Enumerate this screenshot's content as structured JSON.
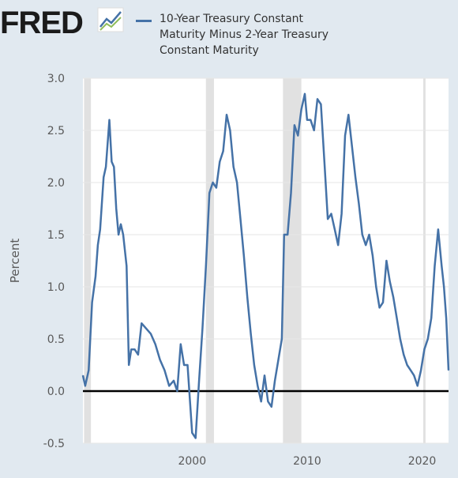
{
  "header": {
    "logo_text": "FRED",
    "legend_label": "10-Year Treasury Constant Maturity Minus 2-Year Treasury Constant Maturity"
  },
  "colors": {
    "background": "#e1e9f0",
    "plot_background": "#ffffff",
    "series": "#4572a7",
    "recession": "#e1e1e1",
    "zero_line": "#000000",
    "logo_dark": "#1b1b1b"
  },
  "chart_data": {
    "type": "line",
    "title": "",
    "xlabel": "",
    "ylabel": "Percent",
    "xlim": [
      1990.5,
      2022.3
    ],
    "ylim": [
      -0.5,
      3.0
    ],
    "yticks": [
      -0.5,
      0.0,
      0.5,
      1.0,
      1.5,
      2.0,
      2.5,
      3.0
    ],
    "ytick_labels": [
      "-0.5",
      "0.0",
      "0.5",
      "1.0",
      "1.5",
      "2.0",
      "2.5",
      "3.0"
    ],
    "xticks": [
      2000,
      2010,
      2020
    ],
    "xtick_labels": [
      "2000",
      "2010",
      "2020"
    ],
    "grid": "horizontal",
    "legend": "top",
    "recessions": [
      [
        1990.6,
        1991.2
      ],
      [
        2001.2,
        2001.9
      ],
      [
        2007.9,
        2009.5
      ],
      [
        2020.1,
        2020.3
      ]
    ],
    "series": [
      {
        "name": "10-Year Treasury Constant Maturity Minus 2-Year Treasury Constant Maturity",
        "x": [
          1990.5,
          1990.7,
          1991.0,
          1991.3,
          1991.6,
          1991.8,
          1992.0,
          1992.3,
          1992.5,
          1992.8,
          1993.0,
          1993.2,
          1993.4,
          1993.6,
          1993.8,
          1994.0,
          1994.3,
          1994.5,
          1994.7,
          1995.0,
          1995.3,
          1995.6,
          1996.0,
          1996.4,
          1996.8,
          1997.2,
          1997.6,
          1998.0,
          1998.4,
          1998.7,
          1999.0,
          1999.3,
          1999.6,
          2000.0,
          2000.3,
          2000.6,
          2000.9,
          2001.2,
          2001.5,
          2001.8,
          2002.1,
          2002.4,
          2002.7,
          2003.0,
          2003.3,
          2003.6,
          2003.9,
          2004.2,
          2004.5,
          2004.8,
          2005.1,
          2005.4,
          2005.7,
          2006.0,
          2006.3,
          2006.6,
          2006.9,
          2007.2,
          2007.5,
          2007.8,
          2008.0,
          2008.3,
          2008.6,
          2008.9,
          2009.2,
          2009.5,
          2009.8,
          2010.0,
          2010.3,
          2010.6,
          2010.9,
          2011.2,
          2011.5,
          2011.8,
          2012.1,
          2012.4,
          2012.7,
          2013.0,
          2013.3,
          2013.6,
          2013.9,
          2014.2,
          2014.5,
          2014.8,
          2015.1,
          2015.4,
          2015.7,
          2016.0,
          2016.3,
          2016.6,
          2016.9,
          2017.2,
          2017.5,
          2017.8,
          2018.1,
          2018.4,
          2018.7,
          2019.0,
          2019.3,
          2019.6,
          2019.9,
          2020.2,
          2020.5,
          2020.8,
          2021.1,
          2021.4,
          2021.7,
          2021.9,
          2022.1,
          2022.3
        ],
        "values": [
          0.15,
          0.05,
          0.2,
          0.85,
          1.1,
          1.4,
          1.55,
          2.05,
          2.15,
          2.6,
          2.2,
          2.15,
          1.75,
          1.5,
          1.6,
          1.5,
          1.2,
          0.25,
          0.4,
          0.4,
          0.35,
          0.65,
          0.6,
          0.55,
          0.45,
          0.3,
          0.2,
          0.05,
          0.1,
          0.0,
          0.45,
          0.25,
          0.25,
          -0.4,
          -0.45,
          0.1,
          0.6,
          1.2,
          1.9,
          2.0,
          1.95,
          2.2,
          2.3,
          2.65,
          2.5,
          2.15,
          2.0,
          1.65,
          1.3,
          0.9,
          0.55,
          0.25,
          0.05,
          -0.1,
          0.15,
          -0.1,
          -0.15,
          0.1,
          0.3,
          0.5,
          1.5,
          1.5,
          1.9,
          2.55,
          2.45,
          2.7,
          2.85,
          2.6,
          2.6,
          2.5,
          2.8,
          2.75,
          2.2,
          1.65,
          1.7,
          1.55,
          1.4,
          1.7,
          2.45,
          2.65,
          2.35,
          2.05,
          1.8,
          1.5,
          1.4,
          1.5,
          1.3,
          1.0,
          0.8,
          0.85,
          1.25,
          1.05,
          0.9,
          0.7,
          0.5,
          0.35,
          0.25,
          0.2,
          0.15,
          0.05,
          0.2,
          0.4,
          0.5,
          0.7,
          1.2,
          1.55,
          1.2,
          1.0,
          0.7,
          0.2
        ]
      }
    ]
  }
}
